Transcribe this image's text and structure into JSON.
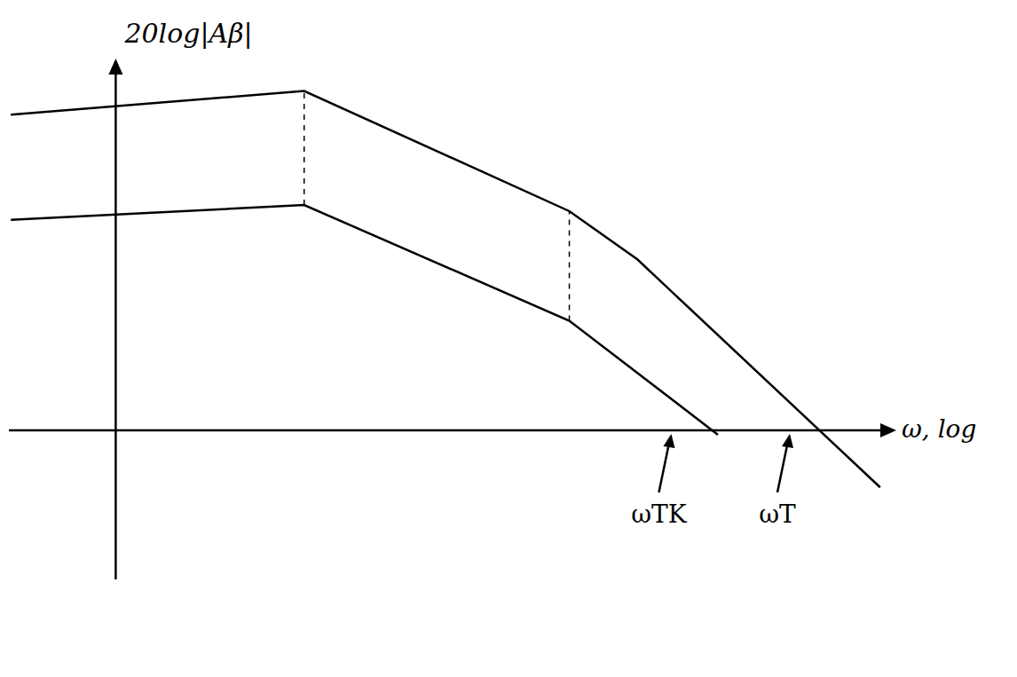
{
  "chart_data": {
    "type": "line",
    "x_label": "ω, log",
    "y_label": "20log|Aβ|",
    "xlim": [
      -1.1,
      8.0
    ],
    "ylim": [
      -1.7,
      4.2
    ],
    "tick_labels": false,
    "grid": false,
    "series": [
      {
        "color": "#000000",
        "x": [
          -1.08,
          1.94,
          4.67,
          5.37,
          7.87
        ],
        "values": [
          3.6,
          3.87,
          2.5,
          1.95,
          -0.65
        ]
      },
      {
        "color": "#000000",
        "x": [
          -1.08,
          1.94,
          4.67,
          6.2
        ],
        "values": [
          2.4,
          2.57,
          1.25,
          -0.05
        ]
      }
    ],
    "annotations": [
      {
        "text": "ωTK",
        "x": 5.72
      },
      {
        "text": "ωT",
        "x": 6.94
      }
    ]
  }
}
